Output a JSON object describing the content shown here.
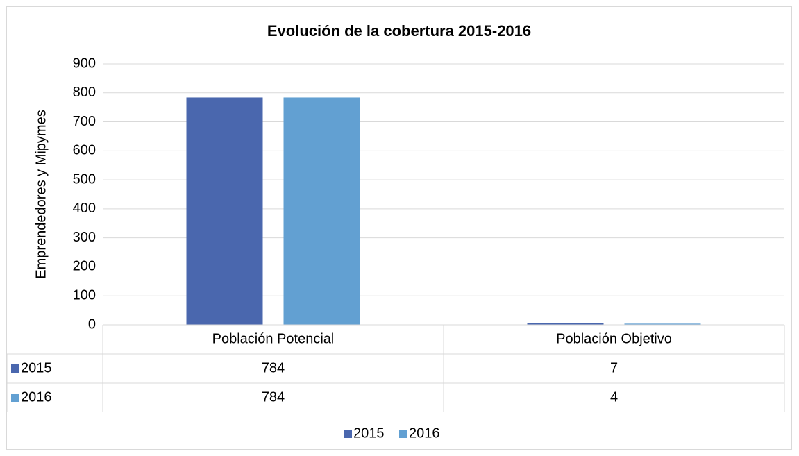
{
  "chart_data": {
    "type": "bar",
    "title": "Evolución de la cobertura 2015-2016",
    "y_label": "Emprendedores y Mipymes",
    "categories": [
      "Población Potencial",
      "Población Objetivo"
    ],
    "series": [
      {
        "name": "2015",
        "color": "#4a67ae",
        "values": [
          784,
          7
        ]
      },
      {
        "name": "2016",
        "color": "#62a0d2",
        "values": [
          784,
          4
        ]
      }
    ],
    "ylim": [
      0,
      900
    ],
    "yticks": [
      0,
      100,
      200,
      300,
      400,
      500,
      600,
      700,
      800,
      900
    ],
    "grid": true,
    "legend": "bottom",
    "data_table": true
  }
}
